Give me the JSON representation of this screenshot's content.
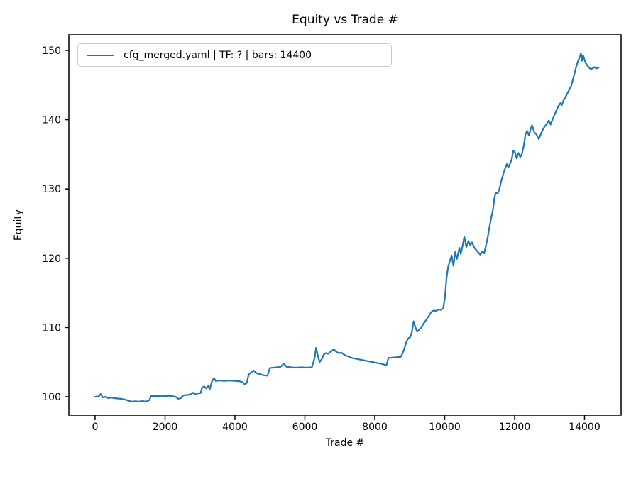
{
  "figure": {
    "background": "#ffffff"
  },
  "chart_data": {
    "type": "line",
    "title": "Equity vs Trade #",
    "xlabel": "Trade #",
    "ylabel": "Equity",
    "legend_position": "upper left",
    "legend": [
      "cfg_merged.yaml | TF: ? | bars: 14400"
    ],
    "grid": false,
    "xlim": [
      -751,
      15046
    ],
    "ylim": [
      97.34,
      152.25
    ],
    "xticks": [
      0,
      2000,
      4000,
      6000,
      8000,
      10000,
      12000,
      14000
    ],
    "xtick_labels": [
      "0",
      "2000",
      "4000",
      "6000",
      "8000",
      "10000",
      "12000",
      "14000"
    ],
    "yticks": [
      100,
      110,
      120,
      130,
      140,
      150
    ],
    "ytick_labels": [
      "100",
      "110",
      "120",
      "130",
      "140",
      "150"
    ],
    "series": [
      {
        "name": "cfg_merged.yaml | TF: ? | bars: 14400",
        "color": "#1f77b4",
        "points": [
          [
            0,
            100.0
          ],
          [
            100,
            100.05
          ],
          [
            160,
            100.4
          ],
          [
            220,
            99.9
          ],
          [
            300,
            100.0
          ],
          [
            380,
            99.8
          ],
          [
            460,
            99.9
          ],
          [
            550,
            99.8
          ],
          [
            650,
            99.75
          ],
          [
            750,
            99.7
          ],
          [
            850,
            99.6
          ],
          [
            950,
            99.45
          ],
          [
            1050,
            99.3
          ],
          [
            1150,
            99.35
          ],
          [
            1250,
            99.3
          ],
          [
            1350,
            99.4
          ],
          [
            1450,
            99.3
          ],
          [
            1550,
            99.5
          ],
          [
            1600,
            100.1
          ],
          [
            1700,
            100.1
          ],
          [
            1800,
            100.1
          ],
          [
            1900,
            100.15
          ],
          [
            2000,
            100.1
          ],
          [
            2100,
            100.15
          ],
          [
            2200,
            100.1
          ],
          [
            2300,
            100.0
          ],
          [
            2380,
            99.7
          ],
          [
            2450,
            99.8
          ],
          [
            2520,
            100.2
          ],
          [
            2600,
            100.25
          ],
          [
            2700,
            100.3
          ],
          [
            2800,
            100.6
          ],
          [
            2850,
            100.4
          ],
          [
            2950,
            100.5
          ],
          [
            3020,
            100.55
          ],
          [
            3060,
            101.3
          ],
          [
            3120,
            101.5
          ],
          [
            3180,
            101.2
          ],
          [
            3240,
            101.6
          ],
          [
            3280,
            101.1
          ],
          [
            3340,
            102.2
          ],
          [
            3400,
            102.7
          ],
          [
            3450,
            102.3
          ],
          [
            3550,
            102.35
          ],
          [
            3700,
            102.3
          ],
          [
            3850,
            102.35
          ],
          [
            4000,
            102.3
          ],
          [
            4120,
            102.25
          ],
          [
            4220,
            102.1
          ],
          [
            4280,
            101.8
          ],
          [
            4340,
            102.0
          ],
          [
            4390,
            103.2
          ],
          [
            4460,
            103.5
          ],
          [
            4530,
            103.8
          ],
          [
            4620,
            103.4
          ],
          [
            4720,
            103.25
          ],
          [
            4820,
            103.1
          ],
          [
            4930,
            103.05
          ],
          [
            5000,
            104.15
          ],
          [
            5100,
            104.2
          ],
          [
            5200,
            104.25
          ],
          [
            5300,
            104.3
          ],
          [
            5400,
            104.8
          ],
          [
            5470,
            104.35
          ],
          [
            5600,
            104.25
          ],
          [
            5750,
            104.2
          ],
          [
            5900,
            104.25
          ],
          [
            6050,
            104.2
          ],
          [
            6200,
            104.25
          ],
          [
            6280,
            105.6
          ],
          [
            6320,
            107.05
          ],
          [
            6360,
            106.2
          ],
          [
            6420,
            105.0
          ],
          [
            6480,
            105.4
          ],
          [
            6540,
            106.1
          ],
          [
            6600,
            106.3
          ],
          [
            6660,
            106.2
          ],
          [
            6720,
            106.45
          ],
          [
            6830,
            106.85
          ],
          [
            6900,
            106.5
          ],
          [
            6970,
            106.3
          ],
          [
            7050,
            106.35
          ],
          [
            7150,
            106.0
          ],
          [
            7250,
            105.8
          ],
          [
            7350,
            105.6
          ],
          [
            7450,
            105.5
          ],
          [
            7550,
            105.4
          ],
          [
            7650,
            105.3
          ],
          [
            7750,
            105.2
          ],
          [
            7850,
            105.1
          ],
          [
            7950,
            105.0
          ],
          [
            8050,
            104.9
          ],
          [
            8150,
            104.8
          ],
          [
            8250,
            104.7
          ],
          [
            8330,
            104.5
          ],
          [
            8390,
            105.6
          ],
          [
            8500,
            105.65
          ],
          [
            8620,
            105.7
          ],
          [
            8740,
            105.75
          ],
          [
            8800,
            106.3
          ],
          [
            8860,
            107.2
          ],
          [
            8910,
            108.0
          ],
          [
            8960,
            108.45
          ],
          [
            9010,
            108.6
          ],
          [
            9060,
            109.3
          ],
          [
            9110,
            110.9
          ],
          [
            9160,
            110.1
          ],
          [
            9210,
            109.4
          ],
          [
            9270,
            109.7
          ],
          [
            9330,
            110.0
          ],
          [
            9400,
            110.6
          ],
          [
            9470,
            111.1
          ],
          [
            9540,
            111.6
          ],
          [
            9610,
            112.2
          ],
          [
            9680,
            112.45
          ],
          [
            9750,
            112.4
          ],
          [
            9820,
            112.6
          ],
          [
            9890,
            112.55
          ],
          [
            9960,
            112.8
          ],
          [
            10010,
            114.5
          ],
          [
            10050,
            117.0
          ],
          [
            10100,
            118.8
          ],
          [
            10140,
            119.5
          ],
          [
            10200,
            120.4
          ],
          [
            10250,
            118.9
          ],
          [
            10300,
            120.9
          ],
          [
            10350,
            119.9
          ],
          [
            10420,
            121.5
          ],
          [
            10460,
            120.6
          ],
          [
            10520,
            122.0
          ],
          [
            10560,
            123.1
          ],
          [
            10620,
            121.6
          ],
          [
            10680,
            122.5
          ],
          [
            10730,
            121.9
          ],
          [
            10780,
            122.3
          ],
          [
            10850,
            121.5
          ],
          [
            10950,
            120.9
          ],
          [
            11020,
            120.5
          ],
          [
            11080,
            121.0
          ],
          [
            11130,
            120.7
          ],
          [
            11180,
            121.8
          ],
          [
            11230,
            123.0
          ],
          [
            11280,
            124.5
          ],
          [
            11330,
            125.8
          ],
          [
            11380,
            127.0
          ],
          [
            11420,
            128.6
          ],
          [
            11460,
            129.5
          ],
          [
            11510,
            129.3
          ],
          [
            11560,
            129.9
          ],
          [
            11620,
            131.2
          ],
          [
            11680,
            132.2
          ],
          [
            11730,
            133.0
          ],
          [
            11780,
            133.6
          ],
          [
            11820,
            133.1
          ],
          [
            11880,
            133.8
          ],
          [
            11920,
            134.3
          ],
          [
            11960,
            135.5
          ],
          [
            12010,
            135.3
          ],
          [
            12060,
            134.4
          ],
          [
            12110,
            135.2
          ],
          [
            12160,
            134.6
          ],
          [
            12210,
            135.1
          ],
          [
            12260,
            136.2
          ],
          [
            12310,
            137.9
          ],
          [
            12360,
            138.4
          ],
          [
            12410,
            137.7
          ],
          [
            12460,
            138.7
          ],
          [
            12500,
            139.2
          ],
          [
            12560,
            138.2
          ],
          [
            12620,
            137.9
          ],
          [
            12690,
            137.2
          ],
          [
            12750,
            137.9
          ],
          [
            12800,
            138.5
          ],
          [
            12860,
            139.0
          ],
          [
            12920,
            139.4
          ],
          [
            12980,
            139.9
          ],
          [
            13030,
            139.3
          ],
          [
            13090,
            140.1
          ],
          [
            13150,
            140.8
          ],
          [
            13210,
            141.5
          ],
          [
            13260,
            142.0
          ],
          [
            13310,
            142.4
          ],
          [
            13350,
            142.1
          ],
          [
            13400,
            142.8
          ],
          [
            13460,
            143.3
          ],
          [
            13520,
            143.9
          ],
          [
            13570,
            144.4
          ],
          [
            13620,
            144.9
          ],
          [
            13670,
            145.8
          ],
          [
            13720,
            146.8
          ],
          [
            13770,
            147.8
          ],
          [
            13820,
            148.5
          ],
          [
            13860,
            149.0
          ],
          [
            13900,
            149.6
          ],
          [
            13930,
            148.5
          ],
          [
            13960,
            149.3
          ],
          [
            13990,
            148.8
          ],
          [
            14030,
            148.2
          ],
          [
            14080,
            147.8
          ],
          [
            14130,
            147.5
          ],
          [
            14180,
            147.3
          ],
          [
            14230,
            147.4
          ],
          [
            14280,
            147.6
          ],
          [
            14330,
            147.4
          ],
          [
            14400,
            147.5
          ]
        ]
      }
    ]
  }
}
